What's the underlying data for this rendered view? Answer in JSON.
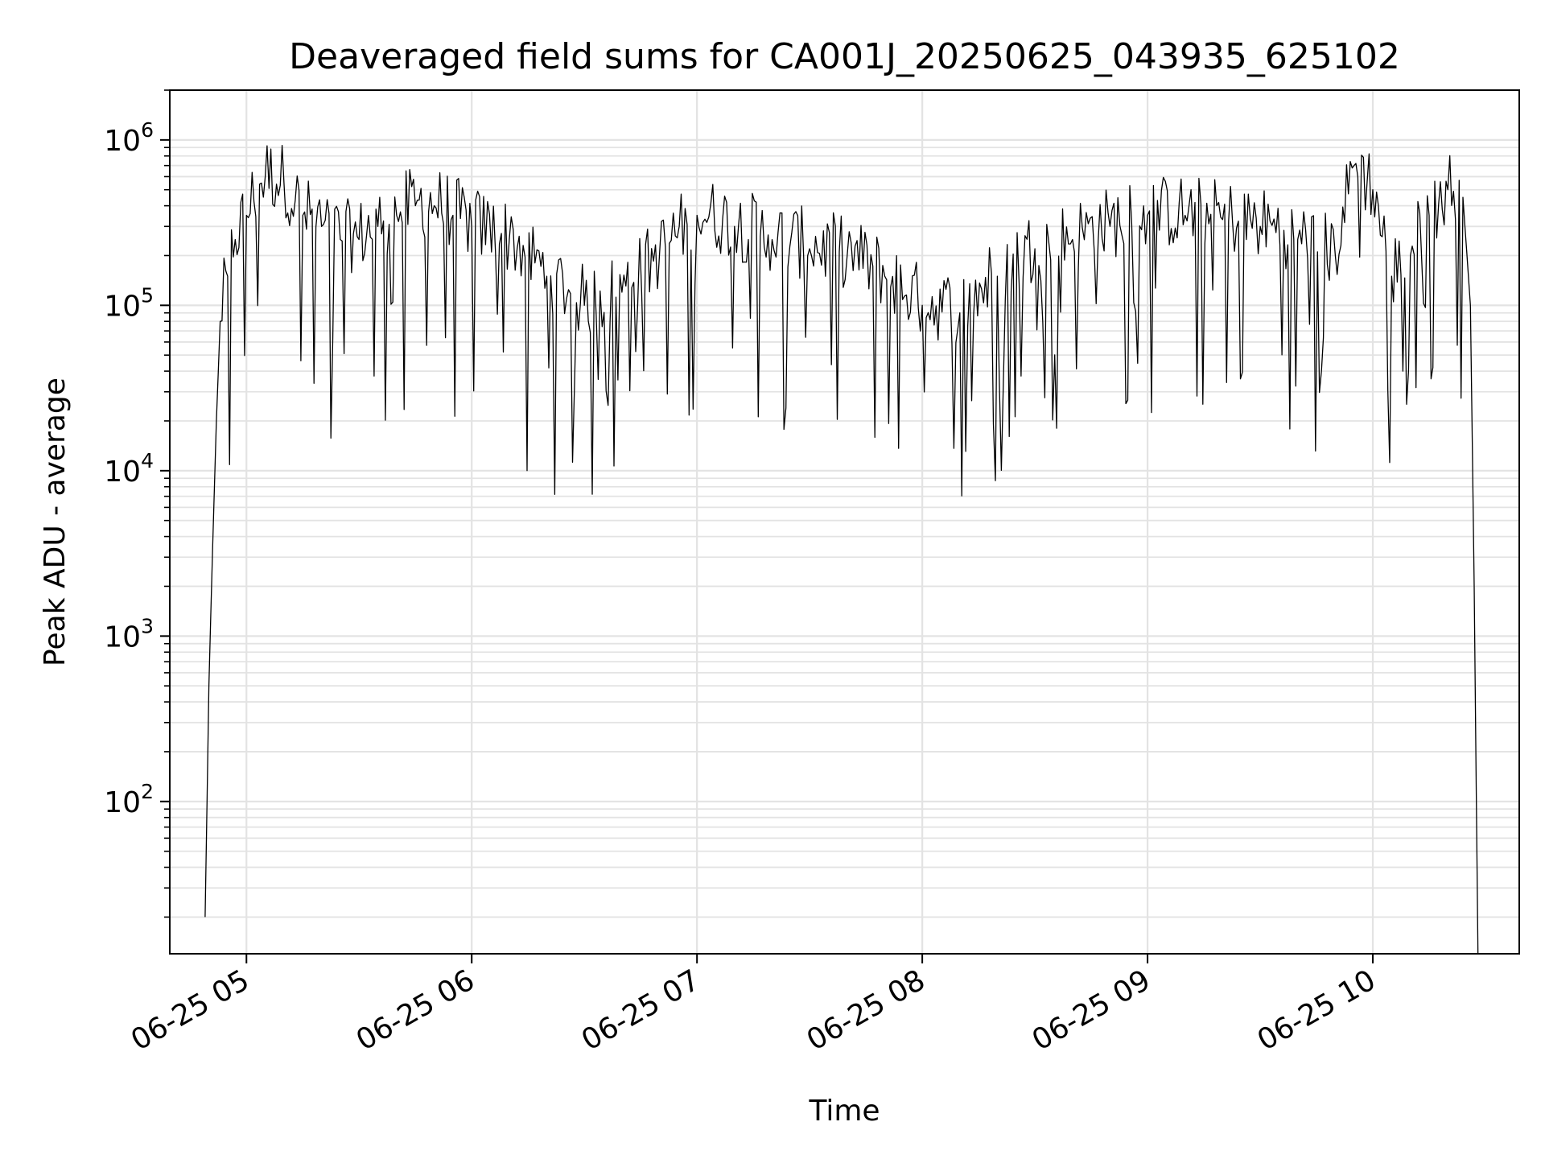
{
  "chart_data": {
    "type": "line",
    "title": "Deaveraged field sums for CA001J_20250625_043935_625102",
    "xlabel": "Time",
    "ylabel": "Peak ADU - average",
    "yscale": "log",
    "xlim": [
      "2025-06-25 04:39:35",
      "2025-06-25 10:39:00"
    ],
    "ylim": [
      12,
      2000000
    ],
    "grid": true,
    "legend": "none",
    "x_ticks": [
      {
        "t": "2025-06-25 05:00",
        "label": "06-25 05"
      },
      {
        "t": "2025-06-25 06:00",
        "label": "06-25 06"
      },
      {
        "t": "2025-06-25 07:00",
        "label": "06-25 07"
      },
      {
        "t": "2025-06-25 08:00",
        "label": "06-25 08"
      },
      {
        "t": "2025-06-25 09:00",
        "label": "06-25 09"
      },
      {
        "t": "2025-06-25 10:00",
        "label": "06-25 10"
      }
    ],
    "y_ticks": [
      {
        "value": 100,
        "mantissa": "10",
        "exp": "2"
      },
      {
        "value": 1000,
        "mantissa": "10",
        "exp": "3"
      },
      {
        "value": 10000,
        "mantissa": "10",
        "exp": "4"
      },
      {
        "value": 100000,
        "mantissa": "10",
        "exp": "5"
      },
      {
        "value": 1000000,
        "mantissa": "10",
        "exp": "6"
      }
    ],
    "series": [
      {
        "color": "#000000",
        "x": [
          "2025-06-25 04:49",
          "2025-06-25 04:50",
          "2025-06-25 04:51",
          "2025-06-25 04:52",
          "2025-06-25 04:53",
          "2025-06-25 04:55",
          "2025-06-25 04:57",
          "2025-06-25 05:00",
          "2025-06-25 05:05",
          "2025-06-25 05:10",
          "2025-06-25 05:15",
          "2025-06-25 05:20",
          "2025-06-25 05:25",
          "2025-06-25 05:30",
          "2025-06-25 05:35",
          "2025-06-25 05:40",
          "2025-06-25 05:45",
          "2025-06-25 05:50",
          "2025-06-25 05:55",
          "2025-06-25 06:00",
          "2025-06-25 06:10",
          "2025-06-25 06:20",
          "2025-06-25 06:30",
          "2025-06-25 06:40",
          "2025-06-25 06:50",
          "2025-06-25 07:00",
          "2025-06-25 07:10",
          "2025-06-25 07:20",
          "2025-06-25 07:30",
          "2025-06-25 07:40",
          "2025-06-25 07:50",
          "2025-06-25 08:00",
          "2025-06-25 08:10",
          "2025-06-25 08:20",
          "2025-06-25 08:30",
          "2025-06-25 08:40",
          "2025-06-25 08:50",
          "2025-06-25 09:00",
          "2025-06-25 09:10",
          "2025-06-25 09:20",
          "2025-06-25 09:30",
          "2025-06-25 09:40",
          "2025-06-25 09:50",
          "2025-06-25 09:55",
          "2025-06-25 10:00",
          "2025-06-25 10:05",
          "2025-06-25 10:10",
          "2025-06-25 10:15",
          "2025-06-25 10:20",
          "2025-06-25 10:24",
          "2025-06-25 10:26",
          "2025-06-25 10:27",
          "2025-06-25 10:28"
        ],
        "y": [
          20,
          500,
          3500,
          20000,
          80000,
          150000,
          250000,
          350000,
          600000,
          550000,
          350000,
          300000,
          250000,
          250000,
          300000,
          350000,
          400000,
          400000,
          350000,
          300000,
          250000,
          150000,
          100000,
          120000,
          200000,
          350000,
          300000,
          250000,
          220000,
          200000,
          150000,
          100000,
          90000,
          150000,
          220000,
          250000,
          300000,
          350000,
          350000,
          330000,
          300000,
          250000,
          200000,
          700000,
          500000,
          150000,
          200000,
          350000,
          500000,
          450000,
          100000,
          2000,
          12
        ]
      }
    ]
  }
}
